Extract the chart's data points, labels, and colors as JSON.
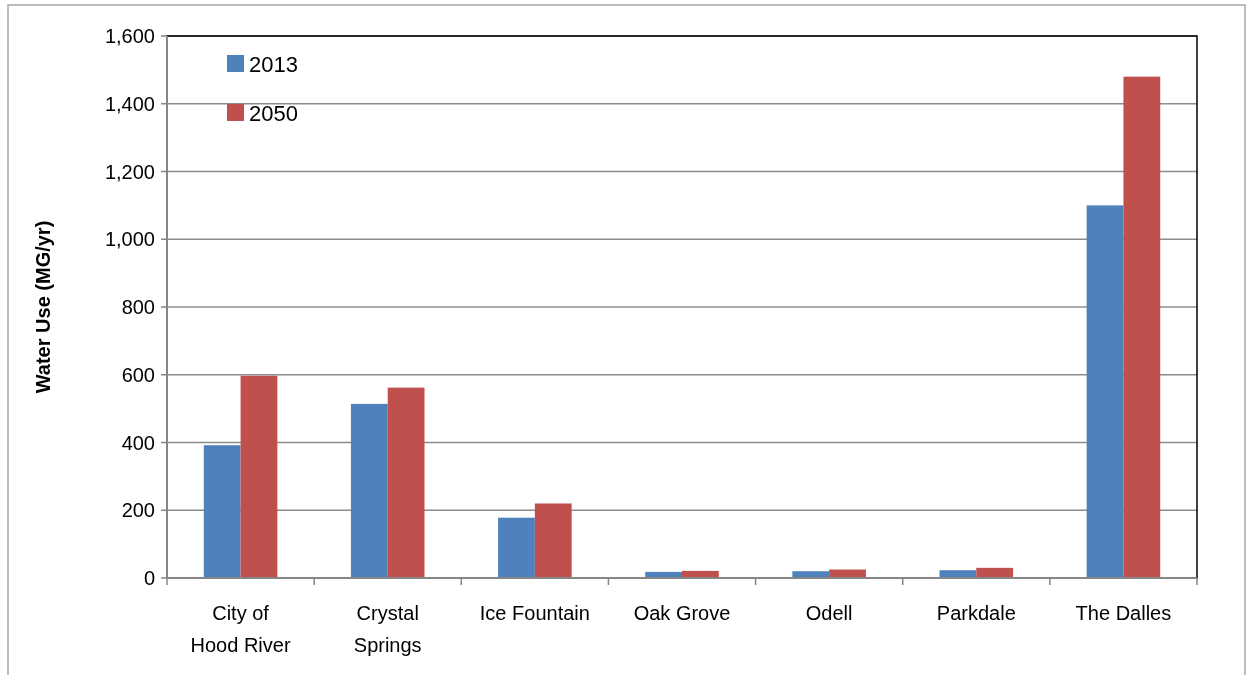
{
  "chart_data": {
    "type": "bar",
    "ylabel": "Water Use (MG/yr)",
    "categories": [
      "City of\nHood River",
      "Crystal\nSprings",
      "Ice Fountain",
      "Oak Grove",
      "Odell",
      "Parkdale",
      "The Dalles"
    ],
    "series": [
      {
        "name": "2013",
        "color": "#4f81bd",
        "values": [
          392,
          514,
          178,
          18,
          20,
          23,
          1100
        ]
      },
      {
        "name": "2050",
        "color": "#c0504d",
        "values": [
          597,
          562,
          220,
          21,
          25,
          30,
          1480
        ]
      }
    ],
    "ylim": [
      0,
      1600
    ],
    "yticks": [
      {
        "value": 0,
        "label": "0"
      },
      {
        "value": 200,
        "label": "200"
      },
      {
        "value": 400,
        "label": "400"
      },
      {
        "value": 600,
        "label": "600"
      },
      {
        "value": 800,
        "label": "800"
      },
      {
        "value": 1000,
        "label": "1,000"
      },
      {
        "value": 1200,
        "label": "1,200"
      },
      {
        "value": 1400,
        "label": "1,400"
      },
      {
        "value": 1600,
        "label": "1,600"
      }
    ],
    "grid": "y",
    "legend": "top left"
  }
}
